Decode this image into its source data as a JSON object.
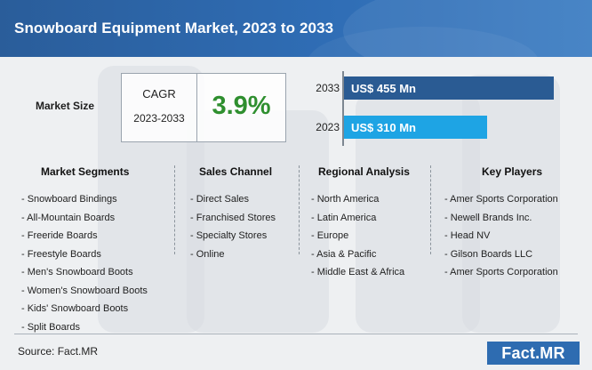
{
  "header": {
    "title": "Snowboard Equipment Market, 2023 to 2033"
  },
  "market_size": {
    "label": "Market Size",
    "cagr_label": "CAGR",
    "cagr_period": "2023-2033",
    "cagr_value": "3.9%"
  },
  "chart_data": {
    "type": "bar",
    "orientation": "horizontal",
    "categories": [
      "2033",
      "2023"
    ],
    "values": [
      455,
      310
    ],
    "value_labels": [
      "US$ 455 Mn",
      "US$ 310 Mn"
    ],
    "unit": "US$ Mn",
    "colors": [
      "#2a5b93",
      "#1ea4e4"
    ]
  },
  "columns": [
    {
      "title": "Market Segments",
      "items": [
        "- Snowboard Bindings",
        "- All-Mountain Boards",
        "- Freeride Boards",
        "- Freestyle Boards",
        "- Men's Snowboard Boots",
        "- Women's Snowboard Boots",
        "- Kids' Snowboard Boots",
        "- Split Boards"
      ]
    },
    {
      "title": "Sales Channel",
      "items": [
        "- Direct Sales",
        "- Franchised Stores",
        "- Specialty Stores",
        "- Online"
      ]
    },
    {
      "title": "Regional Analysis",
      "items": [
        "- North America",
        "- Latin America",
        "- Europe",
        "- Asia & Pacific",
        "- Middle East & Africa"
      ]
    },
    {
      "title": "Key Players",
      "items": [
        "- Amer Sports Corporation",
        "- Newell Brands Inc.",
        "- Head NV",
        "- Gilson Boards LLC",
        "- Amer Sports Corporation"
      ]
    }
  ],
  "footer": {
    "source": "Source: Fact.MR",
    "logo": "Fact.MR"
  }
}
